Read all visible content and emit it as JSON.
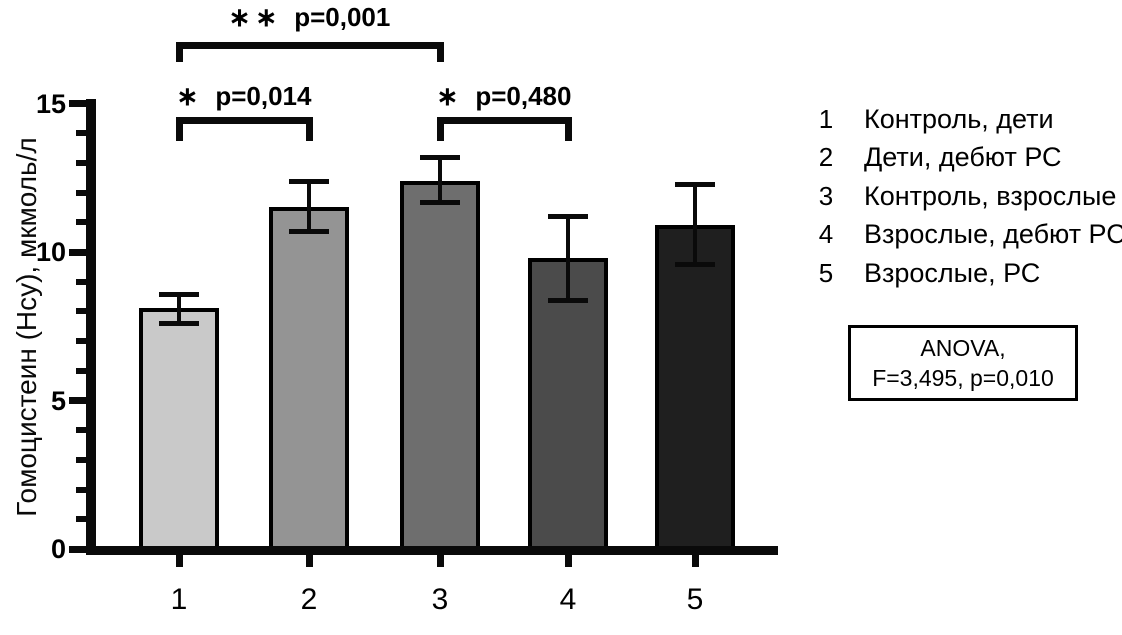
{
  "chart_data": {
    "type": "bar",
    "title": "",
    "xlabel": "",
    "ylabel": "Гомоцистеин (Hcy), мкмоль/л",
    "ylim": [
      0,
      15
    ],
    "yticks": [
      0,
      5,
      10,
      15
    ],
    "minor_tick_step": 1,
    "grid": "off",
    "legend_position": "right",
    "categories": [
      "1",
      "2",
      "3",
      "4",
      "5"
    ],
    "values": [
      8.1,
      11.5,
      12.4,
      9.8,
      10.9
    ],
    "error_upper": [
      8.6,
      12.4,
      13.2,
      11.2,
      12.3
    ],
    "error_lower": [
      7.6,
      10.7,
      11.7,
      8.4,
      9.6
    ],
    "bar_colors": [
      "#c9c9c9",
      "#949494",
      "#6e6e6e",
      "#4b4b4b",
      "#1f1f1f"
    ],
    "bar_border_color": "#000000",
    "axis_color": "#0a0a0a",
    "comparisons": [
      {
        "from": "1",
        "to": "3",
        "stars": "∗∗",
        "p_label": "p=0,001"
      },
      {
        "from": "1",
        "to": "2",
        "stars": "∗",
        "p_label": "p=0,014"
      },
      {
        "from": "3",
        "to": "4",
        "stars": "∗",
        "p_label": "p=0,480"
      }
    ]
  },
  "legend": {
    "items": [
      {
        "key": "1",
        "label": "Контроль, дети"
      },
      {
        "key": "2",
        "label": "Дети, дебют РС"
      },
      {
        "key": "3",
        "label": "Контроль, взрослые"
      },
      {
        "key": "4",
        "label": "Взрослые, дебют РС"
      },
      {
        "key": "5",
        "label": "Взрослые, РС"
      }
    ]
  },
  "anova_box": {
    "line1": "ANOVA,",
    "line2": "F=3,495, p=0,010"
  }
}
